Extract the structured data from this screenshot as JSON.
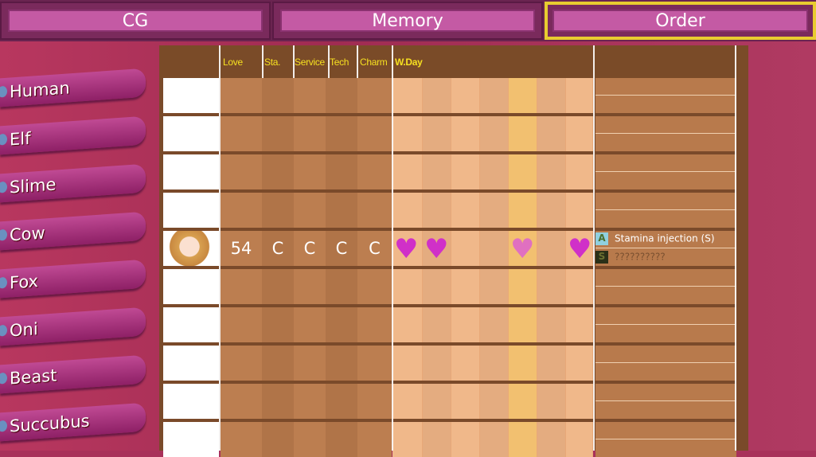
{
  "tabs": [
    {
      "label": "CG"
    },
    {
      "label": "Memory"
    },
    {
      "label": "Order",
      "active": true
    }
  ],
  "sidebar": {
    "items": [
      {
        "label": "Human"
      },
      {
        "label": "Elf"
      },
      {
        "label": "Slime"
      },
      {
        "label": "Cow"
      },
      {
        "label": "Fox"
      },
      {
        "label": "Oni"
      },
      {
        "label": "Beast"
      },
      {
        "label": "Succubus"
      }
    ]
  },
  "table": {
    "headers": {
      "love": "Love",
      "stamina": "Sta.",
      "service": "Service",
      "tech": "Tech",
      "charm": "Charm",
      "wday": "W.Day"
    },
    "filled_row": {
      "love": "54",
      "stamina": "C",
      "service": "C",
      "tech": "C",
      "charm": "C",
      "day_hearts": [
        "solid",
        "solid",
        "none",
        "none",
        "dotted",
        "none",
        "solid"
      ],
      "bonuses": [
        {
          "badge": "A",
          "text": "Stamina injection (S)"
        },
        {
          "badge": "S",
          "text": "??????????"
        }
      ]
    }
  },
  "colors": {
    "heart": "#d030c8",
    "active_tab_border": "#e8cc30",
    "header_text": "#f6e020"
  }
}
